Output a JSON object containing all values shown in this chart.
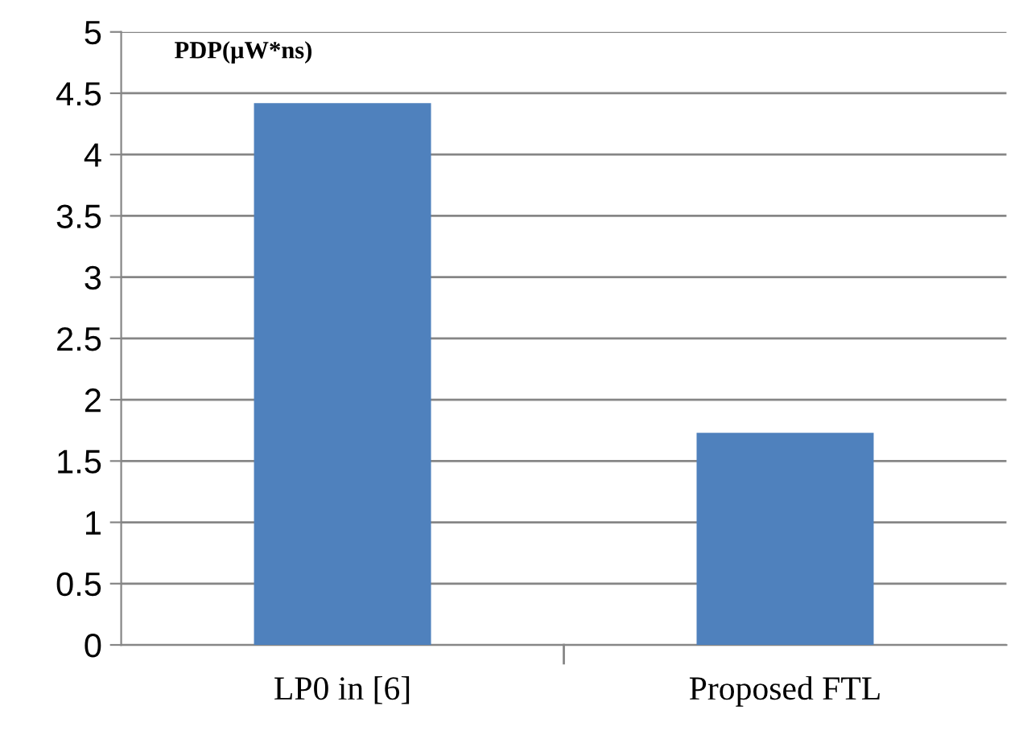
{
  "chart_data": {
    "type": "bar",
    "ylabel": "PDP(μW*ns)",
    "categories": [
      "LP0 in [6]",
      "Proposed FTL"
    ],
    "values": [
      4.42,
      1.73
    ],
    "color": "#4f81bd",
    "ylim": [
      0,
      5
    ],
    "yticks": [
      0,
      0.5,
      1,
      1.5,
      2,
      2.5,
      3,
      3.5,
      4,
      4.5,
      5
    ],
    "grid": "y",
    "legend": false
  }
}
